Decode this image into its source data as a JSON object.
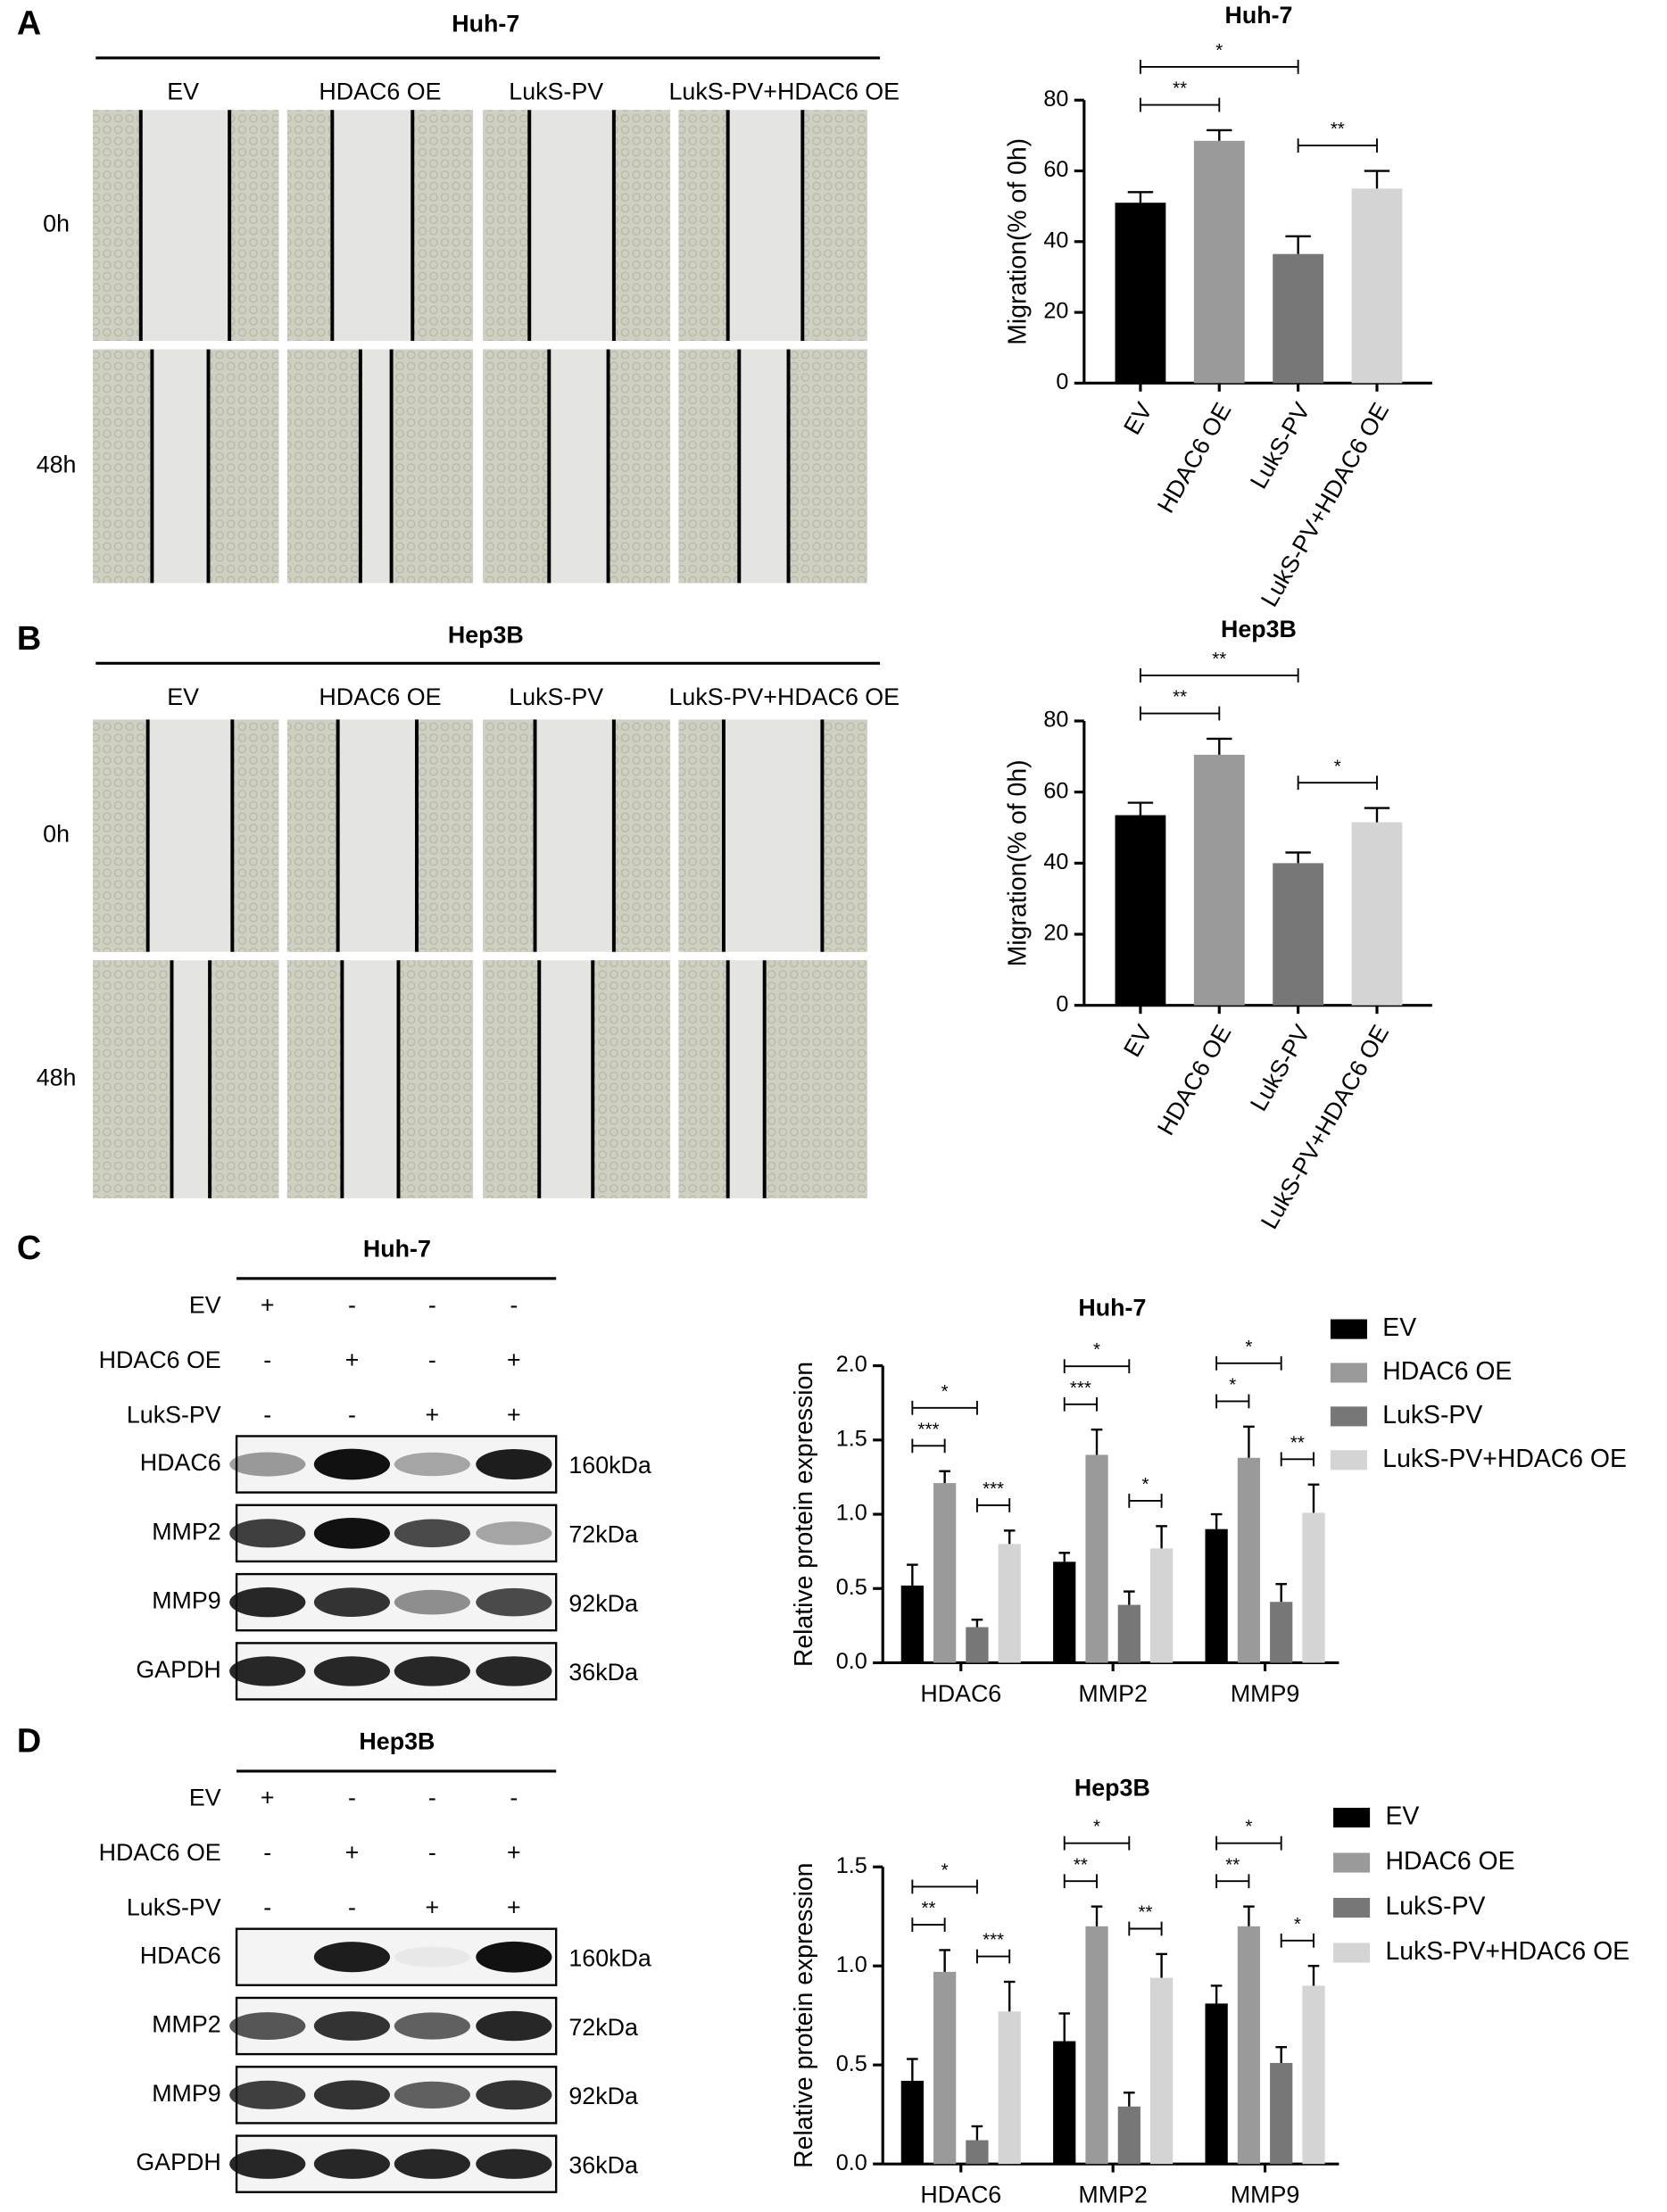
{
  "panels": [
    {
      "letter": "A",
      "title": "Huh-7",
      "columns": [
        "EV",
        "HDAC6 OE",
        "LukS-PV",
        "LukS-PV+HDAC6 OE"
      ],
      "rows": [
        "0h",
        "48h"
      ]
    },
    {
      "letter": "B",
      "title": "Hep3B",
      "columns": [
        "EV",
        "HDAC6 OE",
        "LukS-PV",
        "LukS-PV+HDAC6 OE"
      ],
      "rows": [
        "0h",
        "48h"
      ]
    },
    {
      "letter": "C",
      "title": "Huh-7",
      "treatments": [
        {
          "name": "EV",
          "signs": [
            "+",
            "-",
            "-",
            "-"
          ]
        },
        {
          "name": "HDAC6 OE",
          "signs": [
            "-",
            "+",
            "-",
            "+"
          ]
        },
        {
          "name": "LukS-PV",
          "signs": [
            "-",
            "-",
            "+",
            "+"
          ]
        }
      ],
      "blots": [
        {
          "protein": "HDAC6",
          "size": "160kDa"
        },
        {
          "protein": "MMP2",
          "size": "72kDa"
        },
        {
          "protein": "MMP9",
          "size": "92kDa"
        },
        {
          "protein": "GAPDH",
          "size": "36kDa"
        }
      ]
    },
    {
      "letter": "D",
      "title": "Hep3B",
      "treatments": [
        {
          "name": "EV",
          "signs": [
            "+",
            "-",
            "-",
            "-"
          ]
        },
        {
          "name": "HDAC6 OE",
          "signs": [
            "-",
            "+",
            "-",
            "+"
          ]
        },
        {
          "name": "LukS-PV",
          "signs": [
            "-",
            "-",
            "+",
            "+"
          ]
        }
      ],
      "blots": [
        {
          "protein": "HDAC6",
          "size": "160kDa"
        },
        {
          "protein": "MMP2",
          "size": "72kDa"
        },
        {
          "protein": "MMP9",
          "size": "92kDa"
        },
        {
          "protein": "GAPDH",
          "size": "36kDa"
        }
      ]
    }
  ],
  "chart_data": [
    {
      "type": "bar",
      "title": "Huh-7",
      "y_label": "Migration(% of 0h)",
      "categories": [
        "EV",
        "HDAC6 OE",
        "LukS-PV",
        "LukS-PV+HDAC6 OE"
      ],
      "values": [
        51,
        68.5,
        36.5,
        55
      ],
      "errors": [
        3,
        3,
        5,
        5
      ],
      "colors": [
        "#000000",
        "#9a9a9a",
        "#777777",
        "#d4d4d4"
      ],
      "ylim": [
        0,
        80
      ],
      "yticks": [
        0,
        20,
        40,
        60,
        80
      ],
      "annotations": [
        "*",
        "**",
        "**"
      ]
    },
    {
      "type": "bar",
      "title": "Hep3B",
      "y_label": "Migration(% of 0h)",
      "categories": [
        "EV",
        "HDAC6 OE",
        "LukS-PV",
        "LukS-PV+HDAC6 OE"
      ],
      "values": [
        53.5,
        70.5,
        40,
        51.5
      ],
      "errors": [
        3.5,
        4.5,
        3,
        4
      ],
      "colors": [
        "#000000",
        "#9a9a9a",
        "#777777",
        "#d4d4d4"
      ],
      "ylim": [
        0,
        80
      ],
      "yticks": [
        0,
        20,
        40,
        60,
        80
      ],
      "annotations": [
        "**",
        "**",
        "*"
      ]
    },
    {
      "type": "grouped_bar",
      "title": "Huh-7",
      "y_label": "Relative protein expression",
      "categories": [
        "HDAC6",
        "MMP2",
        "MMP9"
      ],
      "series": [
        {
          "name": "EV",
          "color": "#000000",
          "values": [
            0.52,
            0.68,
            0.9
          ],
          "errors": [
            0.14,
            0.06,
            0.1
          ]
        },
        {
          "name": "HDAC6 OE",
          "color": "#9a9a9a",
          "values": [
            1.21,
            1.4,
            1.38
          ],
          "errors": [
            0.08,
            0.17,
            0.21
          ]
        },
        {
          "name": "LukS-PV",
          "color": "#777777",
          "values": [
            0.24,
            0.39,
            0.41
          ],
          "errors": [
            0.05,
            0.09,
            0.12
          ]
        },
        {
          "name": "LukS-PV+HDAC6 OE",
          "color": "#d4d4d4",
          "values": [
            0.8,
            0.77,
            1.01
          ],
          "errors": [
            0.09,
            0.15,
            0.19
          ]
        }
      ],
      "ylim": [
        0,
        2
      ],
      "yticks": [
        {
          "value": 0,
          "label": "0.0"
        },
        {
          "value": 0.5,
          "label": "0.5"
        },
        {
          "value": 1,
          "label": "1.0"
        },
        {
          "value": 1.5,
          "label": "1.5"
        },
        {
          "value": 2,
          "label": "2.0"
        }
      ],
      "annotations": [
        [
          "*",
          "***",
          "***"
        ],
        [
          "*",
          "***",
          "*"
        ],
        [
          "*",
          "*",
          "**"
        ]
      ]
    },
    {
      "type": "grouped_bar",
      "title": "Hep3B",
      "y_label": "Relative protein expression",
      "categories": [
        "HDAC6",
        "MMP2",
        "MMP9"
      ],
      "series": [
        {
          "name": "EV",
          "color": "#000000",
          "values": [
            0.42,
            0.62,
            0.81
          ],
          "errors": [
            0.11,
            0.14,
            0.09
          ]
        },
        {
          "name": "HDAC6 OE",
          "color": "#9a9a9a",
          "values": [
            0.97,
            1.2,
            1.2
          ],
          "errors": [
            0.11,
            0.1,
            0.1
          ]
        },
        {
          "name": "LukS-PV",
          "color": "#777777",
          "values": [
            0.12,
            0.29,
            0.51
          ],
          "errors": [
            0.07,
            0.07,
            0.08
          ]
        },
        {
          "name": "LukS-PV+HDAC6 OE",
          "color": "#d4d4d4",
          "values": [
            0.77,
            0.94,
            0.9
          ],
          "errors": [
            0.15,
            0.12,
            0.1
          ]
        }
      ],
      "ylim": [
        0,
        1.5
      ],
      "yticks": [
        {
          "value": 0,
          "label": "0.0"
        },
        {
          "value": 0.5,
          "label": "0.5"
        },
        {
          "value": 1,
          "label": "1.0"
        },
        {
          "value": 1.5,
          "label": "1.5"
        }
      ],
      "annotations": [
        [
          "*",
          "**",
          "***"
        ],
        [
          "*",
          "**",
          "**"
        ],
        [
          "*",
          "**",
          "*"
        ]
      ]
    }
  ]
}
